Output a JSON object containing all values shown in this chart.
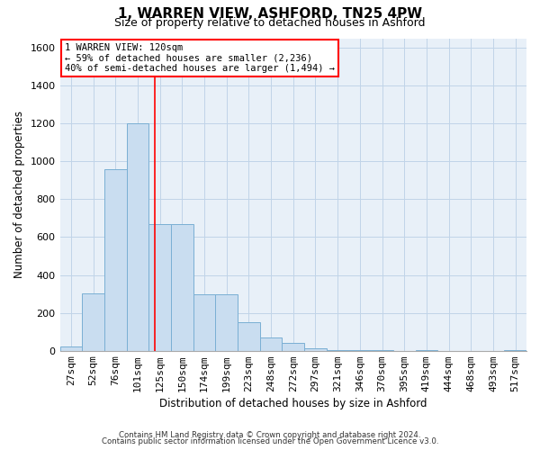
{
  "title": "1, WARREN VIEW, ASHFORD, TN25 4PW",
  "subtitle": "Size of property relative to detached houses in Ashford",
  "xlabel": "Distribution of detached houses by size in Ashford",
  "ylabel": "Number of detached properties",
  "footnote1": "Contains HM Land Registry data © Crown copyright and database right 2024.",
  "footnote2": "Contains public sector information licensed under the Open Government Licence v3.0.",
  "bar_labels": [
    "27sqm",
    "52sqm",
    "76sqm",
    "101sqm",
    "125sqm",
    "150sqm",
    "174sqm",
    "199sqm",
    "223sqm",
    "248sqm",
    "272sqm",
    "297sqm",
    "321sqm",
    "346sqm",
    "370sqm",
    "395sqm",
    "419sqm",
    "444sqm",
    "468sqm",
    "493sqm",
    "517sqm"
  ],
  "bar_values": [
    20,
    305,
    960,
    1200,
    670,
    670,
    300,
    300,
    150,
    70,
    40,
    15,
    5,
    5,
    3,
    0,
    3,
    0,
    0,
    0,
    5
  ],
  "bar_color": "#c9ddf0",
  "bar_edgecolor": "#7aafd4",
  "grid_color": "#c0d4e8",
  "background_color": "#e8f0f8",
  "vline_color": "red",
  "annotation_text": "1 WARREN VIEW: 120sqm\n← 59% of detached houses are smaller (2,236)\n40% of semi-detached houses are larger (1,494) →",
  "ylim": [
    0,
    1650
  ],
  "yticks": [
    0,
    200,
    400,
    600,
    800,
    1000,
    1200,
    1400,
    1600
  ],
  "title_fontsize": 11,
  "subtitle_fontsize": 9,
  "xlabel_fontsize": 8.5,
  "ylabel_fontsize": 8.5,
  "tick_fontsize": 8,
  "annot_fontsize": 7.5
}
